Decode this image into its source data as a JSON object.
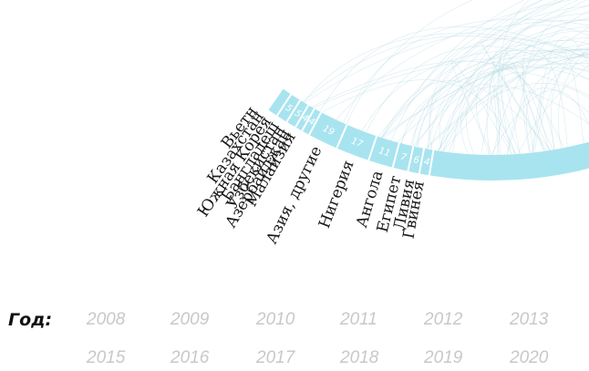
{
  "chart_data": {
    "type": "chord",
    "countries": [
      "Вьетнам",
      "Казахстан",
      "Южная Корея",
      "Бангладеш",
      "Узбекистан",
      "Азербайджан",
      "Малайзия",
      "Азия, другие",
      "Нигерия",
      "Ангола",
      "Египет",
      "Ливия",
      "Гвинея"
    ],
    "visible_country_labels": [
      "Вьетн",
      "Казахстан",
      "Южная Корея",
      "Бангладеш",
      "Узбекистан",
      "Азербайджан",
      "Малайзия",
      "Азия, другие",
      "Нигерия",
      "Ангола",
      "Египет",
      "Ливия",
      "Гвинея"
    ],
    "segment_values": [
      "5",
      "5",
      "4",
      "4",
      "19",
      "17",
      "11",
      "7",
      "6",
      "4"
    ],
    "ring_color": "#a8e4ef",
    "chord_color": "#b9dde6"
  },
  "year_selector": {
    "label": "Год:",
    "years_row1": [
      "2008",
      "2009",
      "2010",
      "2011",
      "2012",
      "2013"
    ],
    "years_row2": [
      "2015",
      "2016",
      "2017",
      "2018",
      "2019",
      "2020"
    ]
  }
}
